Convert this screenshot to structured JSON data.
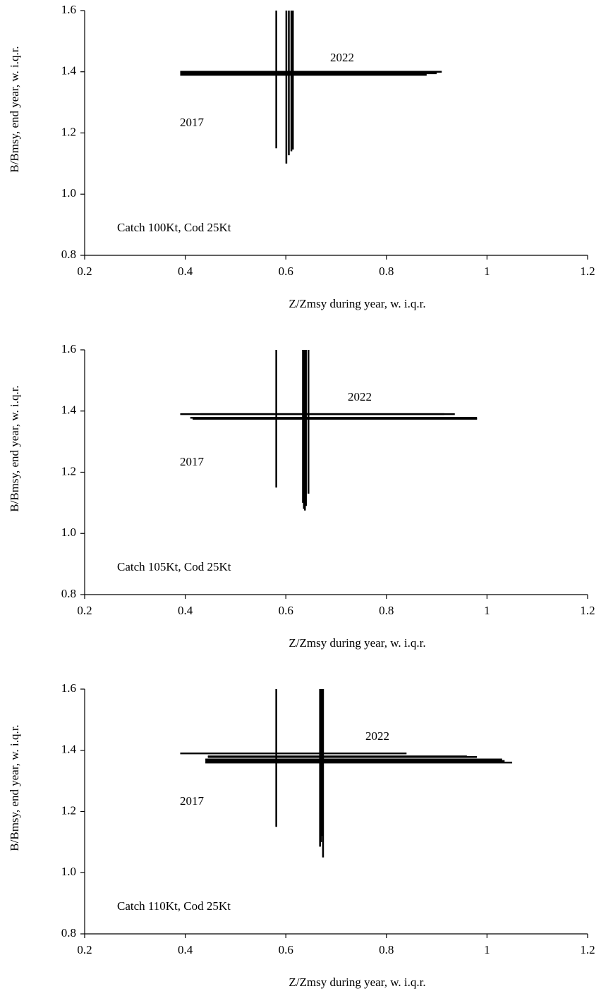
{
  "chart_data": [
    {
      "type": "errorcross",
      "note": "Catch 100Kt, Cod 25Kt",
      "x_label": "Z/Zmsy during year, w. i.q.r.",
      "y_label": "B/Bmsy, end year, w. i.q.r.",
      "categories": [
        "2017",
        null,
        null,
        null,
        null,
        "2022"
      ],
      "x": [
        0.581,
        0.601,
        0.606,
        0.611,
        0.614,
        0.614
      ],
      "values": [
        1.39,
        1.395,
        1.4,
        1.4,
        1.4,
        1.4
      ],
      "x_low": [
        0.39,
        0.39,
        0.39,
        0.4,
        0.4,
        0.4
      ],
      "x_high": [
        0.88,
        0.9,
        0.91,
        0.9,
        0.9,
        0.9
      ],
      "y_low": [
        1.15,
        1.1,
        1.127,
        1.14,
        1.146,
        1.146
      ],
      "y_high": [
        1.6,
        1.6,
        1.6,
        1.6,
        1.6,
        1.6
      ],
      "xlim": [
        0.2,
        1.2
      ],
      "xticks": [
        0.2,
        0.4,
        0.6,
        0.8,
        1,
        1.2
      ],
      "ylim": [
        0.8,
        1.6
      ],
      "yticks": [
        0.8,
        {
          "value": 1,
          "label": "1.0"
        },
        1.2,
        1.4,
        1.6
      ],
      "color": "#000000"
    },
    {
      "type": "errorcross",
      "note": "Catch 105Kt, Cod 25Kt",
      "x_label": "Z/Zmsy during year, w. i.q.r.",
      "y_label": "B/Bmsy, end year, w. i.q.r.",
      "categories": [
        "2017",
        null,
        null,
        null,
        null,
        "2022"
      ],
      "x": [
        0.581,
        0.634,
        0.636,
        0.638,
        0.64,
        0.645
      ],
      "values": [
        1.39,
        1.39,
        1.378,
        1.375,
        1.375,
        1.375
      ],
      "x_low": [
        0.39,
        0.43,
        0.41,
        0.415,
        0.415,
        0.415
      ],
      "x_high": [
        0.936,
        0.915,
        0.98,
        0.98,
        0.98,
        0.98
      ],
      "y_low": [
        1.15,
        1.1,
        1.08,
        1.075,
        1.09,
        1.13
      ],
      "y_high": [
        1.6,
        1.6,
        1.6,
        1.6,
        1.6,
        1.6
      ],
      "xlim": [
        0.2,
        1.2
      ],
      "xticks": [
        0.2,
        0.4,
        0.6,
        0.8,
        1,
        1.2
      ],
      "ylim": [
        0.8,
        1.6
      ],
      "yticks": [
        0.8,
        {
          "value": 1,
          "label": "1.0"
        },
        1.2,
        1.4,
        1.6
      ],
      "color": "#000000"
    },
    {
      "type": "errorcross",
      "note": "Catch 110Kt, Cod 25Kt",
      "x_label": "Z/Zmsy during year, w. i.q.r.",
      "y_label": "B/Bmsy, end year, w. i.q.r.",
      "categories": [
        "2017",
        null,
        null,
        null,
        null,
        "2022"
      ],
      "x": [
        0.581,
        0.668,
        0.67,
        0.672,
        0.673,
        0.674
      ],
      "values": [
        1.39,
        1.38,
        1.378,
        1.37,
        1.365,
        1.36
      ],
      "x_low": [
        0.39,
        0.445,
        0.445,
        0.44,
        0.44,
        0.44
      ],
      "x_high": [
        0.84,
        0.96,
        0.98,
        1.03,
        1.035,
        1.05
      ],
      "y_low": [
        1.15,
        1.085,
        1.1,
        1.13,
        1.12,
        1.05
      ],
      "y_high": [
        1.6,
        1.6,
        1.6,
        1.6,
        1.6,
        1.6
      ],
      "xlim": [
        0.2,
        1.2
      ],
      "xticks": [
        0.2,
        0.4,
        0.6,
        0.8,
        1,
        1.2
      ],
      "ylim": [
        0.8,
        1.6
      ],
      "yticks": [
        0.8,
        {
          "value": 1,
          "label": "1.0"
        },
        1.2,
        1.4,
        1.6
      ],
      "color": "#000000"
    }
  ]
}
